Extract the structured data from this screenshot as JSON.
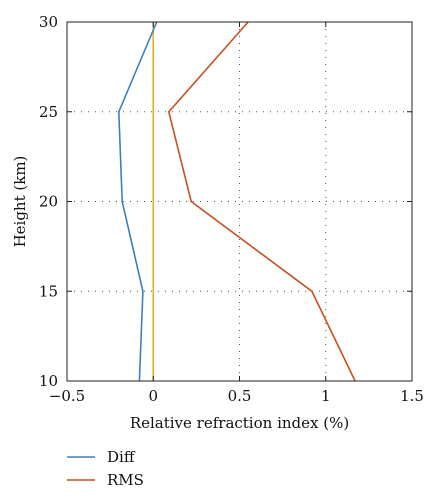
{
  "chart_data": {
    "type": "line",
    "xlabel": "Relative refraction index (%)",
    "ylabel": "Height (km)",
    "xlim": [
      -0.5,
      1.5
    ],
    "ylim": [
      10,
      30
    ],
    "xticks": [
      -0.5,
      0,
      0.5,
      1,
      1.5
    ],
    "yticks": [
      10,
      15,
      20,
      25,
      30
    ],
    "xtick_labels": [
      "−0.5",
      "0",
      "0.5",
      "1",
      "1.5"
    ],
    "ytick_labels": [
      "10",
      "15",
      "20",
      "25",
      "30"
    ],
    "grid": "dotted",
    "legend_position": "bottom-left, below plot",
    "series": [
      {
        "name": "Diff",
        "color": "#3c7fc0",
        "points": [
          [
            -0.08,
            10
          ],
          [
            -0.06,
            15
          ],
          [
            -0.18,
            20
          ],
          [
            -0.2,
            25
          ],
          [
            0.02,
            30
          ]
        ]
      },
      {
        "name": "RMS",
        "color": "#c8501e",
        "points": [
          [
            1.17,
            10
          ],
          [
            0.92,
            15
          ],
          [
            0.22,
            20
          ],
          [
            0.09,
            25
          ],
          [
            0.55,
            30
          ]
        ]
      }
    ],
    "reference_lines": [
      {
        "axis": "x",
        "value": 0,
        "color": "#e8b020"
      }
    ]
  }
}
